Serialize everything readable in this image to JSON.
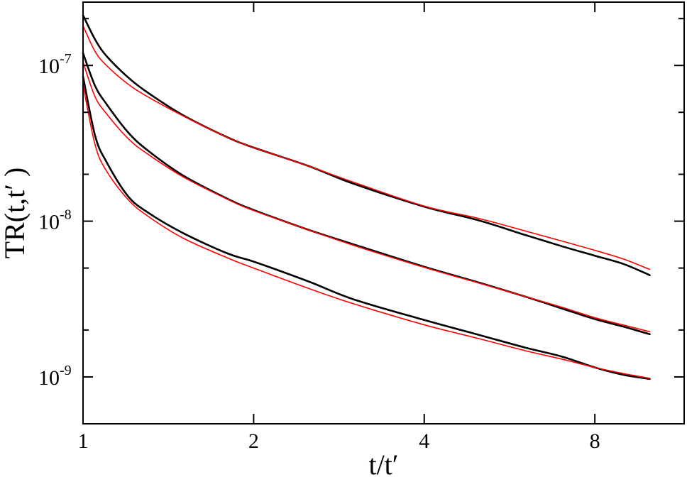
{
  "chart_data": {
    "type": "line",
    "title": "",
    "xlabel": "t/t′",
    "ylabel": "TR(t,t′ )",
    "xscale": "log",
    "yscale": "log",
    "xlim": [
      1,
      11.5
    ],
    "ylim": [
      5e-10,
      2.55e-07
    ],
    "x_ticks": [
      {
        "value": 1,
        "label": "1"
      },
      {
        "value": 2,
        "label": "2"
      },
      {
        "value": 4,
        "label": "4"
      },
      {
        "value": 8,
        "label": "8"
      }
    ],
    "y_ticks": [
      {
        "value": 1e-09,
        "base": "10",
        "exp": "-9"
      },
      {
        "value": 1e-08,
        "base": "10",
        "exp": "-8"
      },
      {
        "value": 1e-07,
        "base": "10",
        "exp": "-7"
      }
    ],
    "y_minor_ticks": [
      2e-09,
      2e-08,
      2e-07,
      5e-09,
      5e-08
    ],
    "grid": false,
    "legend": "none",
    "series": [
      {
        "color": "#000000",
        "style": "simulation",
        "x": [
          1.0,
          1.05,
          1.1,
          1.2,
          1.3,
          1.5,
          1.8,
          2.0,
          2.5,
          3.0,
          4.0,
          5.0,
          6.0,
          7.0,
          8.0,
          9.0,
          10.0
        ],
        "y": [
          2.1e-07,
          1.47e-07,
          1.15e-07,
          8.4e-08,
          6.7e-08,
          4.8e-08,
          3.45e-08,
          2.97e-08,
          2.26e-08,
          1.74e-08,
          1.24e-08,
          1.01e-08,
          8.2e-09,
          6.9e-09,
          6e-09,
          5.3e-09,
          4.5e-09
        ]
      },
      {
        "color": "#000000",
        "style": "simulation",
        "x": [
          1.0,
          1.05,
          1.1,
          1.2,
          1.3,
          1.5,
          1.8,
          2.0,
          2.5,
          3.0,
          4.0,
          5.0,
          6.0,
          7.0,
          8.0,
          9.0,
          10.0
        ],
        "y": [
          1.2e-07,
          7.4e-08,
          5.65e-08,
          3.73e-08,
          2.85e-08,
          1.97e-08,
          1.39e-08,
          1.18e-08,
          8.8e-09,
          7.1e-09,
          5.1e-09,
          4.03e-09,
          3.3e-09,
          2.75e-09,
          2.35e-09,
          2.1e-09,
          1.88e-09
        ]
      },
      {
        "color": "#000000",
        "style": "simulation",
        "x": [
          1.0,
          1.05,
          1.1,
          1.2,
          1.3,
          1.5,
          1.8,
          2.0,
          2.5,
          3.0,
          4.0,
          5.0,
          6.0,
          7.0,
          8.0,
          9.0,
          10.0
        ],
        "y": [
          8.5e-08,
          3.55e-08,
          2.4e-08,
          1.45e-08,
          1.14e-08,
          8.4e-09,
          6.2e-09,
          5.5e-09,
          4.1e-09,
          3.15e-09,
          2.32e-09,
          1.86e-09,
          1.55e-09,
          1.35e-09,
          1.15e-09,
          1.03e-09,
          9.7e-10
        ]
      },
      {
        "color": "#ff0000",
        "style": "fit",
        "x": [
          1.0,
          1.05,
          1.1,
          1.2,
          1.3,
          1.5,
          1.8,
          2.0,
          2.5,
          3.0,
          4.0,
          5.0,
          6.0,
          7.0,
          8.0,
          9.0,
          10.0
        ],
        "y": [
          1.8e-07,
          1.23e-07,
          1e-07,
          7.6e-08,
          6.3e-08,
          4.75e-08,
          3.45e-08,
          2.97e-08,
          2.26e-08,
          1.78e-08,
          1.25e-08,
          1.04e-08,
          8.7e-09,
          7.45e-09,
          6.5e-09,
          5.7e-09,
          4.9e-09
        ]
      },
      {
        "color": "#ff0000",
        "style": "fit",
        "x": [
          1.0,
          1.05,
          1.1,
          1.2,
          1.3,
          1.5,
          1.8,
          2.0,
          2.5,
          3.0,
          4.0,
          5.0,
          6.0,
          7.0,
          8.0,
          9.0,
          10.0
        ],
        "y": [
          1.05e-07,
          6.3e-08,
          4.9e-08,
          3.4e-08,
          2.7e-08,
          1.93e-08,
          1.38e-08,
          1.17e-08,
          8.8e-09,
          7e-09,
          5.05e-09,
          4e-09,
          3.3e-09,
          2.8e-09,
          2.4e-09,
          2.15e-09,
          1.95e-09
        ]
      },
      {
        "color": "#ff0000",
        "style": "fit",
        "x": [
          1.0,
          1.05,
          1.1,
          1.2,
          1.3,
          1.5,
          1.8,
          2.0,
          2.5,
          3.0,
          4.0,
          5.0,
          6.0,
          7.0,
          8.0,
          9.0,
          10.0
        ],
        "y": [
          7.5e-08,
          3.1e-08,
          2.1e-08,
          1.38e-08,
          1.08e-08,
          7.8e-09,
          5.8e-09,
          5e-09,
          3.7e-09,
          2.95e-09,
          2.16e-09,
          1.76e-09,
          1.48e-09,
          1.3e-09,
          1.15e-09,
          1.05e-09,
          9.8e-10
        ]
      }
    ]
  }
}
